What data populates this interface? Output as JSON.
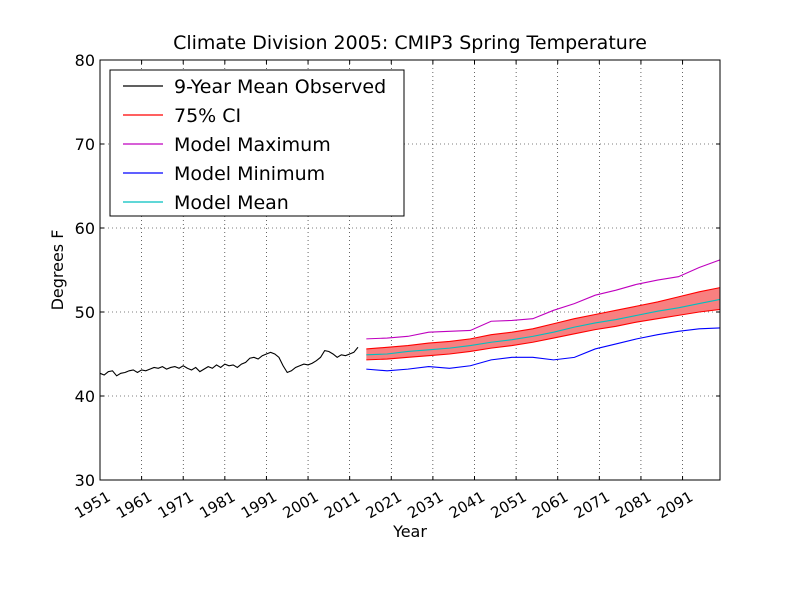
{
  "chart_data": {
    "type": "line",
    "title": "Climate Division 2005: CMIP3 Spring Temperature",
    "xlabel": "Year",
    "ylabel": "Degrees F",
    "xlim": [
      1951,
      2100
    ],
    "ylim": [
      30,
      80
    ],
    "x_ticks": [
      1951,
      1961,
      1971,
      1981,
      1991,
      2001,
      2011,
      2021,
      2031,
      2041,
      2051,
      2061,
      2071,
      2081,
      2091
    ],
    "y_ticks": [
      30,
      40,
      50,
      60,
      70,
      80
    ],
    "grid": true,
    "legend_position": "top-left",
    "legend": [
      {
        "label": "9-Year Mean Observed",
        "color": "#000000"
      },
      {
        "label": "75% CI",
        "color": "#ff0000"
      },
      {
        "label": "Model Maximum",
        "color": "#bf00bf"
      },
      {
        "label": "Model Minimum",
        "color": "#0000ff"
      },
      {
        "label": "Model Mean",
        "color": "#00bfbf"
      }
    ],
    "ci_fill_color": "#f88080",
    "series": [
      {
        "name": "9-Year Mean Observed",
        "color": "#000000",
        "x": [
          1951,
          1952,
          1953,
          1954,
          1955,
          1956,
          1957,
          1958,
          1959,
          1960,
          1961,
          1962,
          1963,
          1964,
          1965,
          1966,
          1967,
          1968,
          1969,
          1970,
          1971,
          1972,
          1973,
          1974,
          1975,
          1976,
          1977,
          1978,
          1979,
          1980,
          1981,
          1982,
          1983,
          1984,
          1985,
          1986,
          1987,
          1988,
          1989,
          1990,
          1991,
          1992,
          1993,
          1994,
          1995,
          1996,
          1997,
          1998,
          1999,
          2000,
          2001,
          2002,
          2003,
          2004,
          2005,
          2006,
          2007,
          2008,
          2009,
          2010,
          2011,
          2012,
          2013
        ],
        "values": [
          42.7,
          42.5,
          42.9,
          43.0,
          42.4,
          42.7,
          42.8,
          43.0,
          43.1,
          42.8,
          43.1,
          43.0,
          43.2,
          43.4,
          43.3,
          43.5,
          43.2,
          43.4,
          43.5,
          43.3,
          43.6,
          43.3,
          43.1,
          43.4,
          42.9,
          43.2,
          43.5,
          43.3,
          43.7,
          43.4,
          43.8,
          43.6,
          43.7,
          43.4,
          43.8,
          44.0,
          44.5,
          44.6,
          44.4,
          44.8,
          45.0,
          45.2,
          45.0,
          44.6,
          43.6,
          42.8,
          43.0,
          43.4,
          43.6,
          43.8,
          43.7,
          43.9,
          44.2,
          44.6,
          45.4,
          45.3,
          45.0,
          44.6,
          44.9,
          44.8,
          45.0,
          45.2,
          45.8
        ]
      },
      {
        "name": "Model Maximum",
        "color": "#bf00bf",
        "x": [
          2015,
          2020,
          2025,
          2030,
          2035,
          2040,
          2045,
          2050,
          2055,
          2060,
          2065,
          2070,
          2075,
          2080,
          2085,
          2090,
          2095,
          2100
        ],
        "values": [
          46.8,
          46.9,
          47.1,
          47.6,
          47.7,
          47.8,
          48.9,
          49.0,
          49.2,
          50.2,
          51.0,
          52.0,
          52.6,
          53.3,
          53.8,
          54.2,
          55.3,
          56.2
        ]
      },
      {
        "name": "CI Upper",
        "color": "#ff0000",
        "x": [
          2015,
          2020,
          2025,
          2030,
          2035,
          2040,
          2045,
          2050,
          2055,
          2060,
          2065,
          2070,
          2075,
          2080,
          2085,
          2090,
          2095,
          2100
        ],
        "values": [
          45.6,
          45.8,
          46.0,
          46.3,
          46.5,
          46.8,
          47.3,
          47.6,
          48.0,
          48.6,
          49.2,
          49.7,
          50.2,
          50.7,
          51.2,
          51.8,
          52.4,
          52.9
        ]
      },
      {
        "name": "CI Lower",
        "color": "#ff0000",
        "x": [
          2015,
          2020,
          2025,
          2030,
          2035,
          2040,
          2045,
          2050,
          2055,
          2060,
          2065,
          2070,
          2075,
          2080,
          2085,
          2090,
          2095,
          2100
        ],
        "values": [
          44.3,
          44.4,
          44.6,
          44.8,
          45.0,
          45.3,
          45.7,
          46.0,
          46.4,
          46.9,
          47.4,
          47.9,
          48.3,
          48.8,
          49.2,
          49.6,
          50.0,
          50.3
        ]
      },
      {
        "name": "Model Mean",
        "color": "#00bfbf",
        "x": [
          2015,
          2020,
          2025,
          2030,
          2035,
          2040,
          2045,
          2050,
          2055,
          2060,
          2065,
          2070,
          2075,
          2080,
          2085,
          2090,
          2095,
          2100
        ],
        "values": [
          44.9,
          45.0,
          45.3,
          45.5,
          45.7,
          46.0,
          46.4,
          46.7,
          47.1,
          47.6,
          48.2,
          48.7,
          49.1,
          49.6,
          50.1,
          50.5,
          51.0,
          51.5
        ]
      },
      {
        "name": "Model Minimum",
        "color": "#0000ff",
        "x": [
          2015,
          2020,
          2025,
          2030,
          2035,
          2040,
          2045,
          2050,
          2055,
          2060,
          2065,
          2070,
          2075,
          2080,
          2085,
          2090,
          2095,
          2100
        ],
        "values": [
          43.2,
          43.0,
          43.2,
          43.5,
          43.3,
          43.6,
          44.3,
          44.6,
          44.6,
          44.3,
          44.6,
          45.6,
          46.2,
          46.8,
          47.3,
          47.7,
          48.0,
          48.1
        ]
      }
    ]
  }
}
